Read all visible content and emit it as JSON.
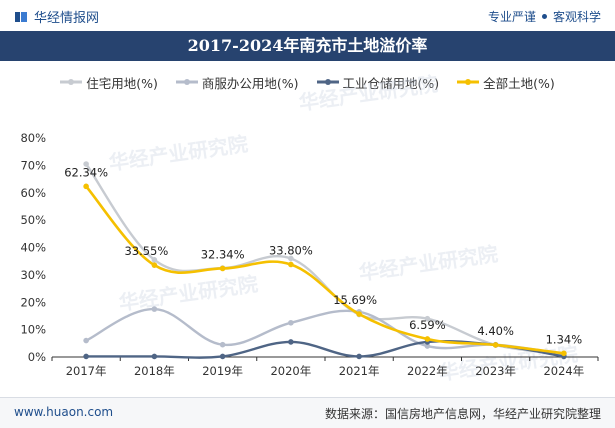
{
  "header": {
    "brand": "华经情报网",
    "slogan_left": "专业严谨",
    "slogan_right": "客观科学",
    "brand_color": "#1f4e8c"
  },
  "title_bar": {
    "color": "#27436f"
  },
  "chart_data": {
    "type": "line",
    "title": "2017-2024年南充市土地溢价率",
    "categories": [
      "2017年",
      "2018年",
      "2019年",
      "2020年",
      "2021年",
      "2022年",
      "2023年",
      "2024年"
    ],
    "y_ticks": [
      "0%",
      "10%",
      "20%",
      "30%",
      "40%",
      "50%",
      "60%",
      "70%",
      "80%"
    ],
    "ylim": [
      0,
      80
    ],
    "grid": false,
    "legend_position": "top",
    "series": [
      {
        "name": "住宅用地(%)",
        "color": "#c7cbd1",
        "values": [
          70.5,
          35.5,
          32.5,
          36.0,
          15.5,
          14.0,
          4.4,
          1.3
        ]
      },
      {
        "name": "商服办公用地(%)",
        "color": "#b5bccb",
        "values": [
          6.0,
          17.5,
          4.5,
          12.5,
          16.5,
          4.0,
          4.5,
          1.0
        ]
      },
      {
        "name": "工业仓储用地(%)",
        "color": "#4f6585",
        "values": [
          0.2,
          0.2,
          0.2,
          5.5,
          0.2,
          5.5,
          4.4,
          0.2
        ]
      },
      {
        "name": "全部土地(%)",
        "color": "#f5c000",
        "values": [
          62.34,
          33.55,
          32.34,
          33.8,
          15.69,
          6.59,
          4.4,
          1.34
        ],
        "labels": [
          "62.34%",
          "33.55%",
          "32.34%",
          "33.80%",
          "15.69%",
          "6.59%",
          "4.40%",
          "1.34%"
        ]
      }
    ]
  },
  "watermark": "华经产业研究院",
  "footer": {
    "website": "www.huaon.com",
    "source": "数据来源：国信房地产信息网，华经产业研究院整理"
  }
}
